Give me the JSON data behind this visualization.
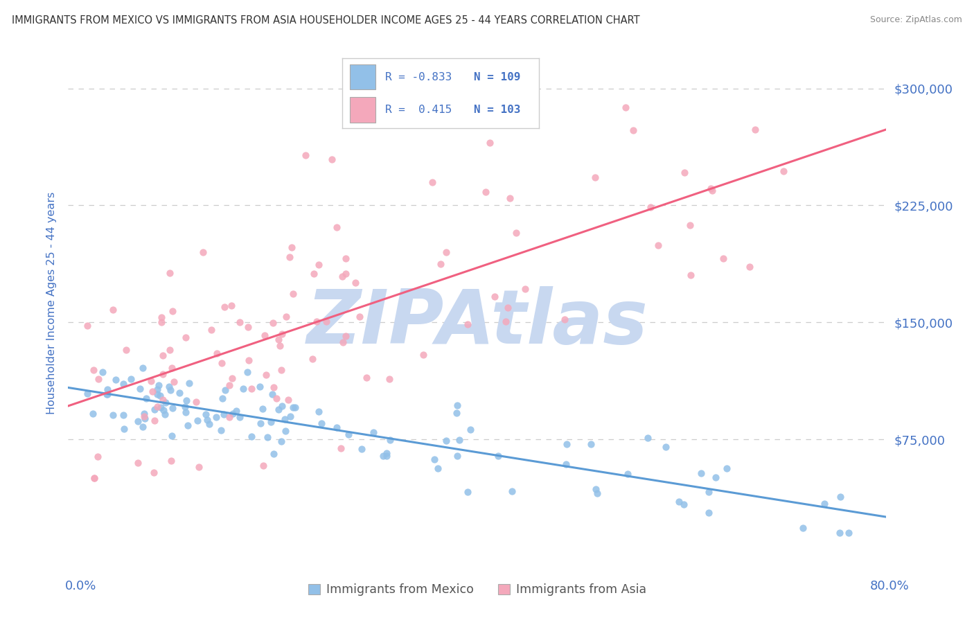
{
  "title": "IMMIGRANTS FROM MEXICO VS IMMIGRANTS FROM ASIA HOUSEHOLDER INCOME AGES 25 - 44 YEARS CORRELATION CHART",
  "source": "Source: ZipAtlas.com",
  "ylabel": "Householder Income Ages 25 - 44 years",
  "yticks": [
    0,
    75000,
    150000,
    225000,
    300000
  ],
  "ytick_labels": [
    "",
    "$75,000",
    "$150,000",
    "$225,000",
    "$300,000"
  ],
  "xlim": [
    0.0,
    0.8
  ],
  "ylim": [
    0,
    325000
  ],
  "legend_r1": "-0.833",
  "legend_n1": "109",
  "legend_r2": "0.415",
  "legend_n2": "103",
  "label_mexico": "Immigrants from Mexico",
  "label_asia": "Immigrants from Asia",
  "color_mexico": "#92C0E8",
  "color_asia": "#F4A8BB",
  "line_mexico": "#5b9bd5",
  "line_asia": "#F06080",
  "watermark": "ZIPAtlas",
  "watermark_color": "#C8D8F0",
  "background": "#ffffff",
  "grid_color": "#cccccc",
  "title_color": "#333333",
  "axis_label_color": "#4472c4",
  "r_color": "#4472c4"
}
